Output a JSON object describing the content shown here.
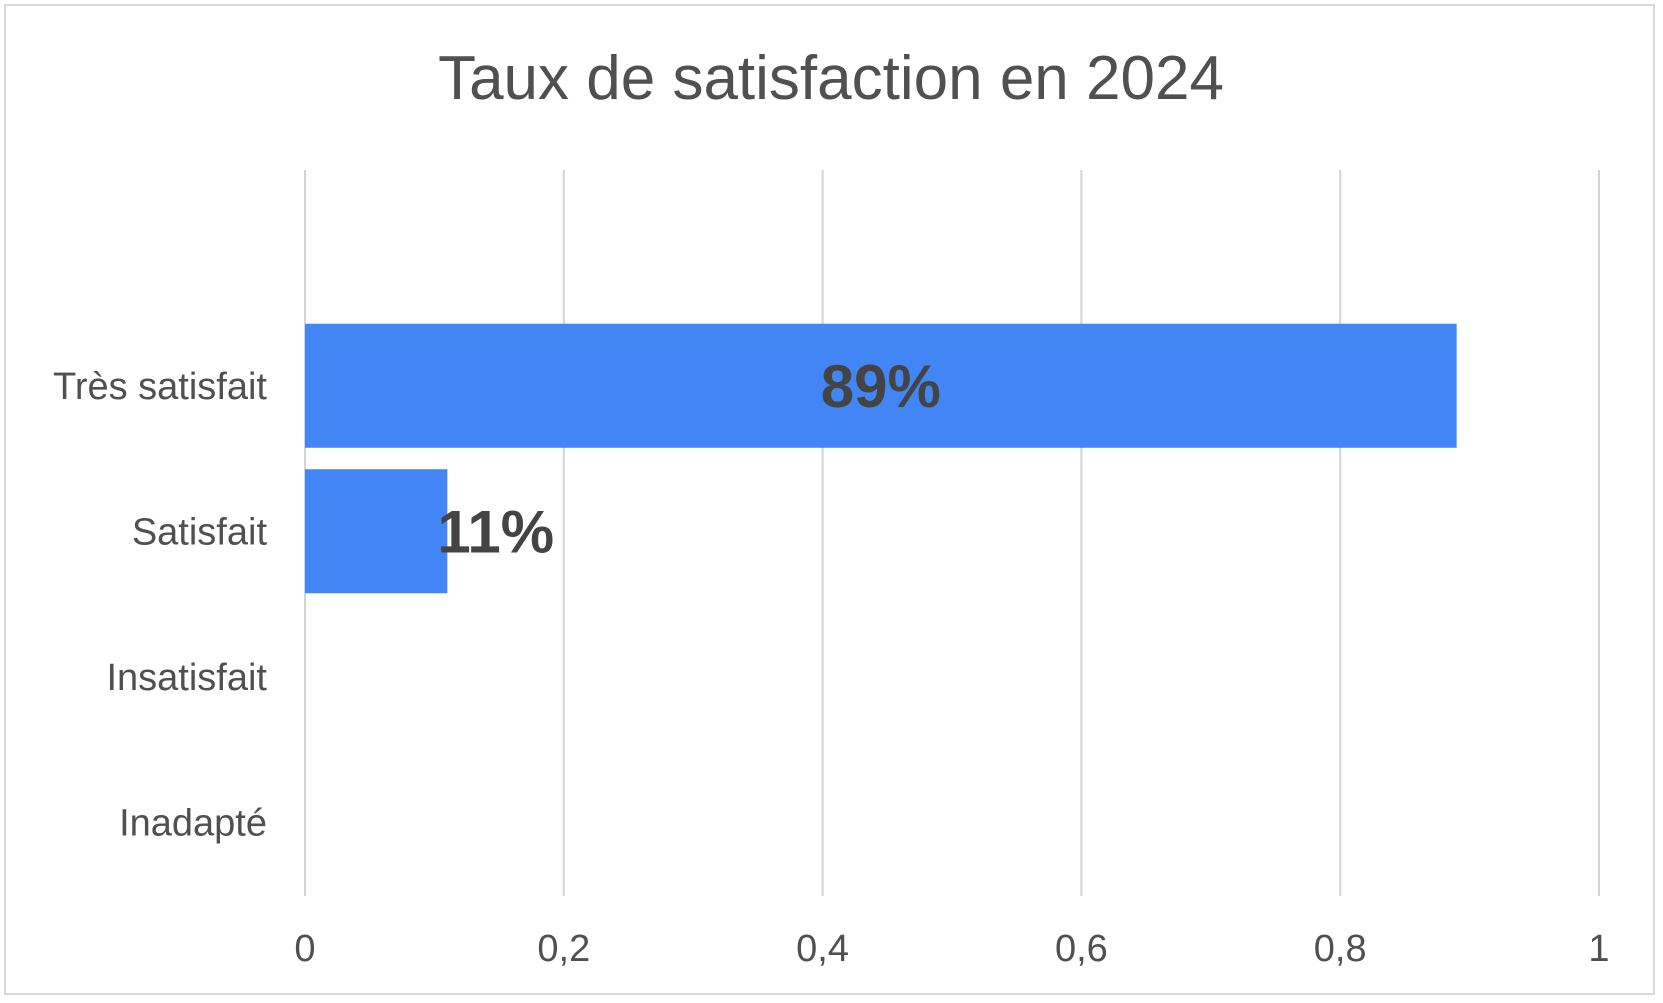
{
  "chart_data": {
    "type": "bar",
    "orientation": "horizontal",
    "title": "Taux de satisfaction en 2024",
    "categories": [
      "Très satisfait",
      "Satisfait",
      "Insatisfait",
      "Inadapté"
    ],
    "values": [
      0.89,
      0.11,
      0,
      0
    ],
    "data_labels": [
      "89%",
      "11%",
      "",
      ""
    ],
    "xlim": [
      0,
      1
    ],
    "x_ticks": [
      0,
      0.2,
      0.4,
      0.6,
      0.8,
      1
    ],
    "x_tick_labels": [
      "0",
      "0,2",
      "0,4",
      "0,6",
      "0,8",
      "1"
    ],
    "grid": true,
    "bar_color": "#4285f4"
  }
}
